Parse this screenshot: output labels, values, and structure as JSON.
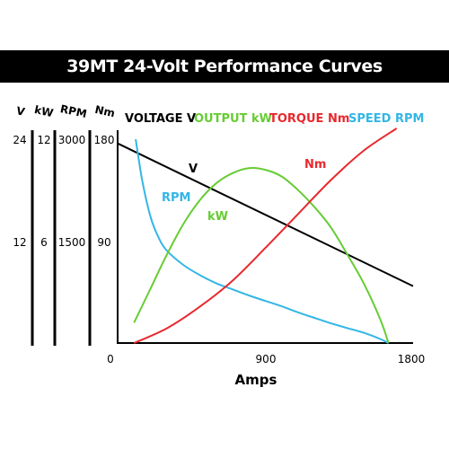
{
  "title": "39MT 24-Volt Performance Curves",
  "colors": {
    "voltage": "#000000",
    "output": "#66cc33",
    "torque": "#e8282d",
    "speed": "#33b6e6",
    "title_bg": "#000000",
    "title_fg": "#ffffff"
  },
  "chart_data": {
    "type": "line",
    "title": "39MT 24-Volt Performance Curves",
    "xlabel": "Amps",
    "xlim": [
      0,
      1800
    ],
    "x_ticks": [
      "0",
      "900",
      "1800"
    ],
    "grid": false,
    "legend_position": "top",
    "legend": [
      {
        "key": "voltage",
        "text": "VOLTAGE V"
      },
      {
        "key": "output",
        "text": "OUTPUT kW"
      },
      {
        "key": "torque",
        "text": "TORQUE Nm"
      },
      {
        "key": "speed",
        "text": "SPEED RPM"
      }
    ],
    "y_axes": [
      {
        "key": "voltage",
        "header": "V",
        "ticks": [
          "24",
          "12"
        ],
        "ylim": [
          0,
          24
        ]
      },
      {
        "key": "output",
        "header": "kW",
        "ticks": [
          "12",
          "6"
        ],
        "ylim": [
          0,
          12
        ]
      },
      {
        "key": "speed",
        "header": "RPM",
        "ticks": [
          "3000",
          "1500"
        ],
        "ylim": [
          0,
          3000
        ]
      },
      {
        "key": "torque",
        "header": "Nm",
        "ticks": [
          "180",
          "90"
        ],
        "ylim": [
          0,
          180
        ]
      }
    ],
    "series": [
      {
        "key": "voltage",
        "name": "V",
        "axis": "voltage",
        "x": [
          0,
          1800
        ],
        "y": [
          23.5,
          6.7
        ]
      },
      {
        "key": "speed",
        "name": "RPM",
        "axis": "speed",
        "x": [
          110,
          150,
          200,
          250,
          300,
          400,
          500,
          600,
          700,
          800,
          900,
          1000,
          1100,
          1200,
          1300,
          1400,
          1500,
          1600,
          1650
        ],
        "y": [
          3000,
          2390,
          1860,
          1550,
          1360,
          1150,
          1000,
          880,
          790,
          700,
          620,
          540,
          450,
          370,
          290,
          220,
          150,
          60,
          0
        ]
      },
      {
        "key": "output",
        "name": "kW",
        "axis": "output",
        "x": [
          100,
          200,
          300,
          400,
          500,
          600,
          700,
          800,
          900,
          1000,
          1100,
          1200,
          1300,
          1400,
          1500,
          1600,
          1650
        ],
        "y": [
          1.2,
          3.2,
          5.2,
          7.0,
          8.4,
          9.4,
          10.0,
          10.3,
          10.2,
          9.8,
          9.0,
          8.0,
          6.8,
          5.2,
          3.5,
          1.4,
          0
        ]
      },
      {
        "key": "torque",
        "name": "Nm",
        "axis": "torque",
        "x": [
          100,
          300,
          500,
          700,
          900,
          1100,
          1300,
          1500,
          1700
        ],
        "y": [
          0,
          13,
          32,
          55,
          84,
          114,
          144,
          170,
          198
        ]
      }
    ]
  }
}
